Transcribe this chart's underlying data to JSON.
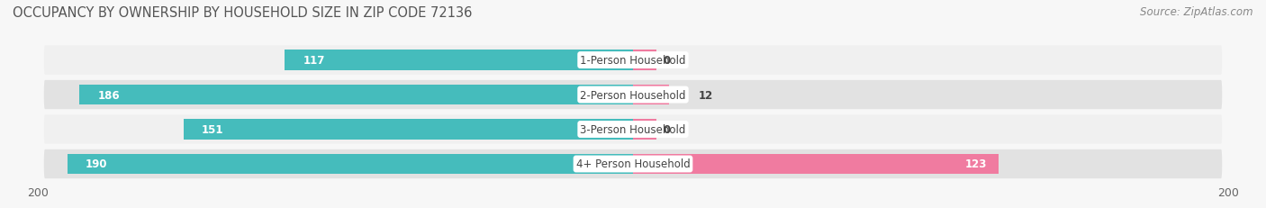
{
  "title": "OCCUPANCY BY OWNERSHIP BY HOUSEHOLD SIZE IN ZIP CODE 72136",
  "source": "Source: ZipAtlas.com",
  "categories": [
    "1-Person Household",
    "2-Person Household",
    "3-Person Household",
    "4+ Person Household"
  ],
  "owner_values": [
    117,
    186,
    151,
    190
  ],
  "renter_values": [
    0,
    12,
    0,
    123
  ],
  "owner_color": "#45BCBC",
  "renter_color": "#F07BA0",
  "axis_max": 200,
  "axis_min": -200,
  "row_bg_color_light": "#f0f0f0",
  "row_bg_color_dark": "#e2e2e2",
  "label_bg_color": "#ffffff",
  "fig_bg_color": "#f7f7f7",
  "title_fontsize": 10.5,
  "source_fontsize": 8.5,
  "tick_fontsize": 9,
  "bar_label_fontsize": 8.5,
  "cat_label_fontsize": 8.5,
  "legend_fontsize": 9
}
